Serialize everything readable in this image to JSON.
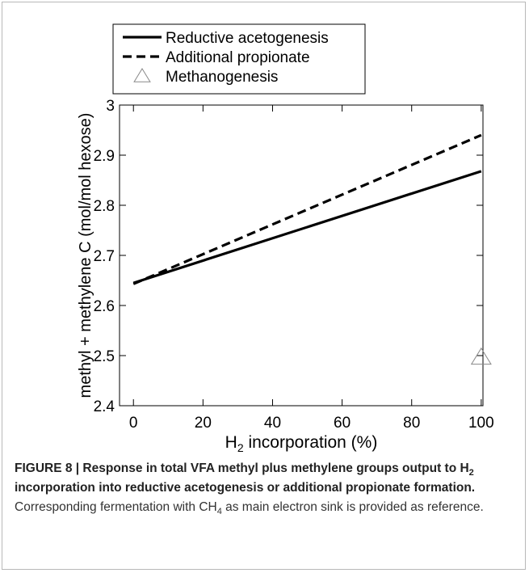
{
  "chart_data": {
    "type": "line",
    "x_label": [
      "H",
      "2",
      " incorporation (%)"
    ],
    "y_label": "methyl + methylene C (mol/mol hexose)",
    "series": [
      {
        "name": "Reductive acetogenesis",
        "color": "#000000",
        "dashed": false,
        "marker": "none",
        "x": [
          0,
          100
        ],
        "values": [
          2.645,
          2.868
        ]
      },
      {
        "name": "Additional propionate",
        "color": "#000000",
        "dashed": true,
        "marker": "none",
        "x": [
          0,
          100
        ],
        "values": [
          2.643,
          2.94
        ]
      },
      {
        "name": "Methanogenesis",
        "color": "#888888",
        "dashed": false,
        "marker": "triangle",
        "x": [
          100
        ],
        "values": [
          2.497
        ]
      }
    ],
    "xlim": [
      -4,
      100.5
    ],
    "xticks": [
      0,
      20,
      40,
      60,
      80,
      100
    ],
    "ylim": [
      2.4,
      3
    ],
    "yticks": [
      2.4,
      2.5,
      2.6,
      2.7,
      2.8,
      2.9,
      3
    ],
    "legend": "top-left",
    "caption": [
      {
        "text": "FIGURE 8 | Response in total VFA methyl plus methylene groups output to H",
        "bold": true,
        "sub": false
      },
      {
        "text": "2",
        "bold": true,
        "sub": true
      },
      {
        "text": " incorporation into reductive acetogenesis or additional propionate formation.",
        "bold": true,
        "sub": false
      },
      {
        "text": " Corresponding fermentation with CH",
        "bold": false,
        "sub": false
      },
      {
        "text": "4",
        "bold": false,
        "sub": true
      },
      {
        "text": " as main electron sink is provided as reference.",
        "bold": false,
        "sub": false
      }
    ]
  }
}
